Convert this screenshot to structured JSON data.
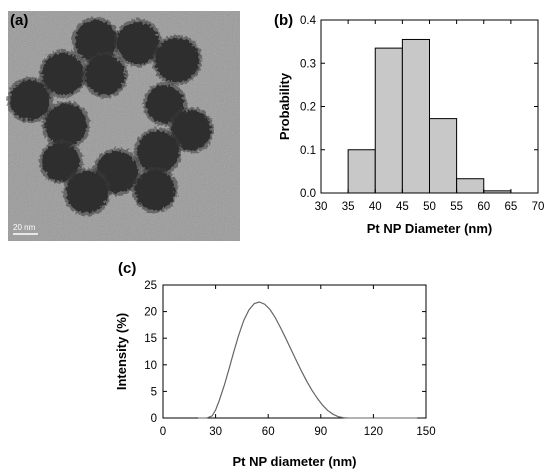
{
  "panels": {
    "a": "(a)",
    "b": "(b)",
    "c": "(c)"
  },
  "micrograph": {
    "scale_label": "20 nm"
  },
  "chart_data": [
    {
      "type": "bar",
      "panel": "(b)",
      "xlabel": "Pt NP Diameter (nm)",
      "ylabel": "Probability",
      "xlim": [
        30,
        70
      ],
      "ylim": [
        0,
        0.4
      ],
      "xticks": [
        30,
        35,
        40,
        45,
        50,
        55,
        60,
        65,
        70
      ],
      "yticks": [
        0.0,
        0.1,
        0.2,
        0.3,
        0.4
      ],
      "bins": [
        {
          "x0": 35,
          "x1": 40,
          "value": 0.1
        },
        {
          "x0": 40,
          "x1": 45,
          "value": 0.335
        },
        {
          "x0": 45,
          "x1": 50,
          "value": 0.355
        },
        {
          "x0": 50,
          "x1": 55,
          "value": 0.172
        },
        {
          "x0": 55,
          "x1": 60,
          "value": 0.033
        },
        {
          "x0": 60,
          "x1": 65,
          "value": 0.005
        }
      ],
      "bar_color": "#c8c8c8"
    },
    {
      "type": "line",
      "panel": "(c)",
      "xlabel": "Pt NP diameter (nm)",
      "ylabel": "Intensity (%)",
      "xlim": [
        0,
        150
      ],
      "ylim": [
        0,
        25
      ],
      "xticks": [
        0,
        30,
        60,
        90,
        120,
        150
      ],
      "yticks": [
        0,
        5,
        10,
        15,
        20,
        25
      ],
      "x": [
        25,
        28,
        30,
        32,
        35,
        38,
        40,
        43,
        46,
        49,
        52,
        55,
        58,
        61,
        64,
        67,
        70,
        73,
        76,
        79,
        82,
        85,
        88,
        91,
        94,
        97,
        100,
        103,
        105
      ],
      "y": [
        0,
        0.4,
        1.5,
        3.2,
        6.2,
        9.6,
        12.0,
        15.4,
        18.3,
        20.3,
        21.5,
        21.8,
        21.4,
        20.4,
        18.9,
        17.0,
        15.0,
        12.9,
        10.8,
        8.8,
        6.9,
        5.2,
        3.7,
        2.4,
        1.4,
        0.7,
        0.25,
        0.05,
        0
      ],
      "line_color": "#666666"
    }
  ]
}
